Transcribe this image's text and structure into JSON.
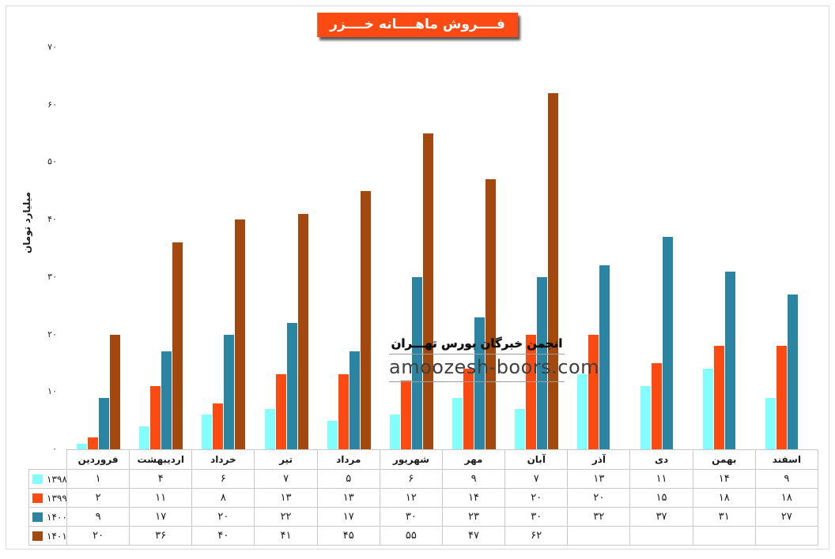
{
  "title": "فــــروش ماهــــانه خــــزر",
  "y_axis": {
    "label": "میلیارد تومان",
    "ticks": [
      0,
      10,
      20,
      30,
      40,
      50,
      60,
      70
    ]
  },
  "watermark": {
    "line1": "انجمن خبرگان بورس تهـــران",
    "line2": "amoozesh-boors.com"
  },
  "chart_data": {
    "type": "bar",
    "title": "فــــروش ماهــــانه خــــزر",
    "ylabel": "میلیارد تومان",
    "ylim": [
      0,
      70
    ],
    "grid": false,
    "legend_position": "table-left-column",
    "digits": "persian",
    "categories": [
      "فروردین",
      "اردیبهشت",
      "خرداد",
      "تیر",
      "مرداد",
      "شهریور",
      "مهر",
      "آبان",
      "آذر",
      "دی",
      "بهمن",
      "اسفند"
    ],
    "series": [
      {
        "name": "۱۳۹۸",
        "color": "#84FDFD",
        "values": [
          1,
          4,
          6,
          7,
          5,
          6,
          9,
          7,
          13,
          11,
          14,
          9
        ]
      },
      {
        "name": "۱۳۹۹",
        "color": "#FB4B12",
        "values": [
          2,
          11,
          8,
          13,
          13,
          12,
          14,
          20,
          20,
          15,
          18,
          18
        ]
      },
      {
        "name": "۱۴۰۰",
        "color": "#2C84A3",
        "values": [
          9,
          17,
          20,
          22,
          17,
          30,
          23,
          30,
          32,
          37,
          31,
          27
        ]
      },
      {
        "name": "۱۴۰۱",
        "color": "#A3480E",
        "values": [
          20,
          36,
          40,
          41,
          45,
          55,
          47,
          62,
          null,
          null,
          null,
          null
        ]
      }
    ]
  }
}
